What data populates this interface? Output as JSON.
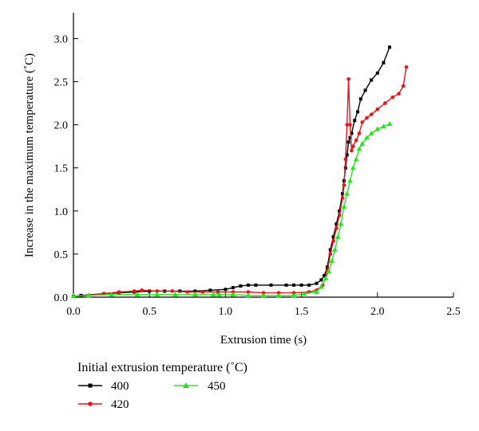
{
  "chart_data": {
    "type": "line",
    "title": "",
    "xlabel": "Extrusion time (s)",
    "ylabel": "Increase in the maximum temperature (˚C)",
    "xlim": [
      0,
      2.5
    ],
    "ylim": [
      0,
      3.3
    ],
    "xticks": [
      "0.0",
      "0.5",
      "1.0",
      "1.5",
      "2.0",
      "2.5"
    ],
    "yticks": [
      "0.0",
      "0.5",
      "1.0",
      "1.5",
      "2.0",
      "2.5",
      "3.0"
    ],
    "grid": false,
    "legend_title": "Initial extrusion temperature (˚C)",
    "legend_position": "bottom",
    "series": [
      {
        "name": "400",
        "color": "#000000",
        "marker": "square",
        "points": [
          [
            0.0,
            0.01
          ],
          [
            0.05,
            0.02
          ],
          [
            0.2,
            0.04
          ],
          [
            0.3,
            0.05
          ],
          [
            0.4,
            0.06
          ],
          [
            0.5,
            0.07
          ],
          [
            0.6,
            0.07
          ],
          [
            0.7,
            0.07
          ],
          [
            0.8,
            0.07
          ],
          [
            0.9,
            0.08
          ],
          [
            1.0,
            0.09
          ],
          [
            1.05,
            0.11
          ],
          [
            1.1,
            0.13
          ],
          [
            1.15,
            0.14
          ],
          [
            1.2,
            0.14
          ],
          [
            1.3,
            0.14
          ],
          [
            1.4,
            0.14
          ],
          [
            1.45,
            0.14
          ],
          [
            1.5,
            0.14
          ],
          [
            1.55,
            0.14
          ],
          [
            1.6,
            0.16
          ],
          [
            1.63,
            0.2
          ],
          [
            1.65,
            0.25
          ],
          [
            1.67,
            0.35
          ],
          [
            1.69,
            0.55
          ],
          [
            1.71,
            0.7
          ],
          [
            1.73,
            0.85
          ],
          [
            1.75,
            1.0
          ],
          [
            1.77,
            1.2
          ],
          [
            1.78,
            1.35
          ],
          [
            1.79,
            1.5
          ],
          [
            1.8,
            1.65
          ],
          [
            1.81,
            1.8
          ],
          [
            1.82,
            1.85
          ],
          [
            1.83,
            1.9
          ],
          [
            1.85,
            2.05
          ],
          [
            1.87,
            2.15
          ],
          [
            1.89,
            2.3
          ],
          [
            1.92,
            2.4
          ],
          [
            1.96,
            2.52
          ],
          [
            2.0,
            2.6
          ],
          [
            2.04,
            2.72
          ],
          [
            2.08,
            2.9
          ]
        ]
      },
      {
        "name": "420",
        "color": "#e8141a",
        "marker": "circle",
        "points": [
          [
            0.0,
            0.01
          ],
          [
            0.1,
            0.02
          ],
          [
            0.2,
            0.04
          ],
          [
            0.3,
            0.06
          ],
          [
            0.4,
            0.07
          ],
          [
            0.45,
            0.08
          ],
          [
            0.55,
            0.07
          ],
          [
            0.65,
            0.07
          ],
          [
            0.75,
            0.06
          ],
          [
            0.85,
            0.06
          ],
          [
            0.95,
            0.06
          ],
          [
            1.05,
            0.06
          ],
          [
            1.15,
            0.06
          ],
          [
            1.25,
            0.05
          ],
          [
            1.35,
            0.05
          ],
          [
            1.45,
            0.05
          ],
          [
            1.55,
            0.06
          ],
          [
            1.6,
            0.08
          ],
          [
            1.64,
            0.14
          ],
          [
            1.67,
            0.3
          ],
          [
            1.69,
            0.5
          ],
          [
            1.71,
            0.65
          ],
          [
            1.73,
            0.8
          ],
          [
            1.75,
            0.95
          ],
          [
            1.77,
            1.15
          ],
          [
            1.78,
            1.3
          ],
          [
            1.79,
            1.6
          ],
          [
            1.8,
            2.0
          ],
          [
            1.81,
            2.53
          ],
          [
            1.82,
            2.0
          ],
          [
            1.83,
            1.7
          ],
          [
            1.84,
            1.75
          ],
          [
            1.86,
            1.82
          ],
          [
            1.88,
            1.9
          ],
          [
            1.9,
            2.03
          ],
          [
            1.93,
            2.08
          ],
          [
            1.96,
            2.12
          ],
          [
            2.0,
            2.18
          ],
          [
            2.05,
            2.25
          ],
          [
            2.1,
            2.32
          ],
          [
            2.14,
            2.36
          ],
          [
            2.17,
            2.45
          ],
          [
            2.19,
            2.67
          ]
        ]
      },
      {
        "name": "450",
        "color": "#24e61e",
        "marker": "triangle",
        "points": [
          [
            0.0,
            0.01
          ],
          [
            0.1,
            0.02
          ],
          [
            0.25,
            0.03
          ],
          [
            0.42,
            0.03
          ],
          [
            0.55,
            0.03
          ],
          [
            0.67,
            0.03
          ],
          [
            0.8,
            0.03
          ],
          [
            0.92,
            0.03
          ],
          [
            0.96,
            0.03
          ],
          [
            1.05,
            0.03
          ],
          [
            1.15,
            0.02
          ],
          [
            1.25,
            0.02
          ],
          [
            1.35,
            0.02
          ],
          [
            1.45,
            0.02
          ],
          [
            1.52,
            0.04
          ],
          [
            1.6,
            0.06
          ],
          [
            1.63,
            0.12
          ],
          [
            1.66,
            0.22
          ],
          [
            1.68,
            0.3
          ],
          [
            1.7,
            0.42
          ],
          [
            1.72,
            0.55
          ],
          [
            1.74,
            0.7
          ],
          [
            1.76,
            0.85
          ],
          [
            1.78,
            1.05
          ],
          [
            1.8,
            1.2
          ],
          [
            1.82,
            1.35
          ],
          [
            1.84,
            1.5
          ],
          [
            1.86,
            1.6
          ],
          [
            1.88,
            1.72
          ],
          [
            1.9,
            1.78
          ],
          [
            1.93,
            1.85
          ],
          [
            1.96,
            1.9
          ],
          [
            2.0,
            1.95
          ],
          [
            2.04,
            1.98
          ],
          [
            2.08,
            2.01
          ]
        ]
      }
    ]
  }
}
